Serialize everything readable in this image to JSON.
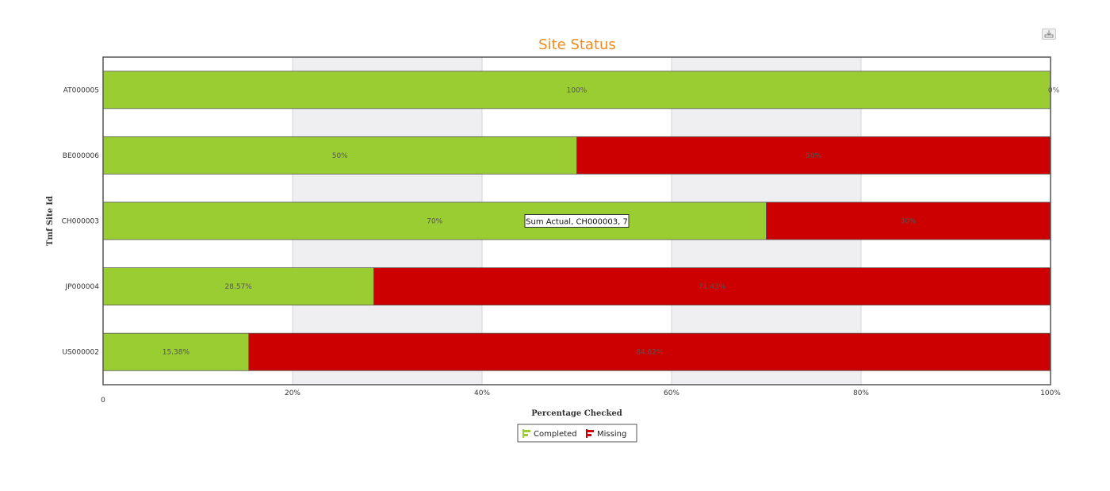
{
  "chart_data": {
    "type": "bar",
    "orientation": "horizontal",
    "stacked": true,
    "title": "Site Status",
    "xlabel": "Percentage Checked",
    "ylabel": "Tmf Site Id",
    "xlim": [
      0,
      100
    ],
    "x_ticks": [
      "0",
      "20%",
      "40%",
      "60%",
      "80%",
      "100%"
    ],
    "categories": [
      "AT000005",
      "BE000006",
      "CH000003",
      "JP000004",
      "US000002"
    ],
    "series": [
      {
        "name": "Completed",
        "color": "#9acd32",
        "values": [
          100,
          50,
          70,
          28.57,
          15.38
        ],
        "labels": [
          "100%",
          "50%",
          "70%",
          "28.57%",
          "15.38%"
        ]
      },
      {
        "name": "Missing",
        "color": "#cc0000",
        "values": [
          0,
          50,
          30,
          71.43,
          84.62
        ],
        "labels": [
          "0%",
          "50%",
          "30%",
          "71.43%",
          "84.62%"
        ]
      }
    ],
    "grid": true,
    "legend_position": "bottom-center",
    "tooltip": {
      "text": "Sum Actual, CH000003, 7",
      "category": "CH000003"
    }
  },
  "colors": {
    "title": "#f08c1e",
    "completed": "#9acd32",
    "missing": "#cc0000",
    "band": "#efeff1"
  },
  "toolbar": {
    "export_icon": "export-icon"
  }
}
